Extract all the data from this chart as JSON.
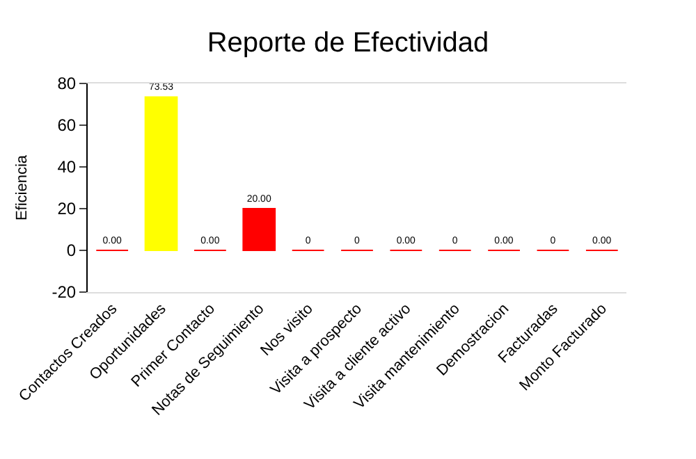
{
  "chart_data": {
    "type": "bar",
    "title": "Reporte de Efectividad",
    "ylabel": "Eficiencia",
    "categories": [
      "Contactos Creados",
      "Oportunidades",
      "Primer Contacto",
      "Notas de Seguimiento",
      "Nos visito",
      "Visita a prospecto",
      "Visita a cliente activo",
      "Visita mantenimiento",
      "Demostracion",
      "Facturadas",
      "Monto Facturado"
    ],
    "values": [
      0,
      73.53,
      0,
      20,
      0,
      0,
      0,
      0,
      0,
      0,
      0
    ],
    "value_labels": [
      "0.00",
      "73.53",
      "0.00",
      "20.00",
      "0",
      "0",
      "0.00",
      "0",
      "0.00",
      "0",
      "0.00"
    ],
    "colors": [
      "#ff0000",
      "#ffff00",
      "#ff0000",
      "#ff0000",
      "#ff0000",
      "#ff0000",
      "#ff0000",
      "#ff0000",
      "#ff0000",
      "#ff0000",
      "#ff0000"
    ],
    "ylim": [
      -20,
      80
    ],
    "yticks": [
      -20,
      0,
      20,
      40,
      60,
      80
    ]
  }
}
